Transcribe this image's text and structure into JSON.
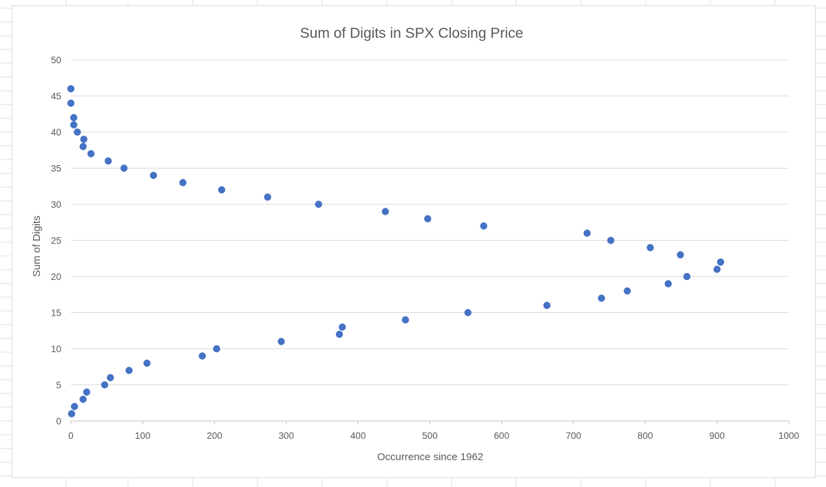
{
  "chart_data": {
    "type": "scatter",
    "title": "Sum of Digits in SPX Closing Price",
    "xlabel": "Occurrence since 1962",
    "ylabel": "Sum of Digits",
    "xlim": [
      0,
      1000
    ],
    "ylim": [
      0,
      50
    ],
    "xticks": [
      "0",
      "100",
      "200",
      "300",
      "400",
      "500",
      "600",
      "700",
      "800",
      "900",
      "1000"
    ],
    "yticks": [
      "0",
      "5",
      "10",
      "15",
      "20",
      "25",
      "30",
      "35",
      "40",
      "45",
      "50"
    ],
    "grid": true,
    "marker_color": "#4472C4",
    "series": [
      {
        "x": [
          1,
          5,
          17,
          22,
          47,
          55,
          81,
          106,
          183,
          203,
          293,
          374,
          378,
          466,
          553,
          663,
          739,
          775,
          832,
          858,
          900,
          905,
          849,
          807,
          752,
          719,
          575,
          497,
          438,
          345,
          274,
          210,
          156,
          115,
          74,
          52,
          28,
          17,
          18,
          9,
          4,
          4,
          0,
          0
        ],
        "y": [
          1,
          2,
          3,
          4,
          5,
          6,
          7,
          8,
          9,
          10,
          11,
          12,
          13,
          14,
          15,
          16,
          17,
          18,
          19,
          20,
          21,
          22,
          23,
          24,
          25,
          26,
          27,
          28,
          29,
          30,
          31,
          32,
          33,
          34,
          35,
          36,
          37,
          38,
          39,
          40,
          41,
          42,
          44,
          46
        ]
      }
    ]
  },
  "colors": {
    "axis": "#bfbfbf",
    "gridline": "#d9d9d9",
    "text": "#595959",
    "sheet_grid": "#e2e2e2"
  }
}
